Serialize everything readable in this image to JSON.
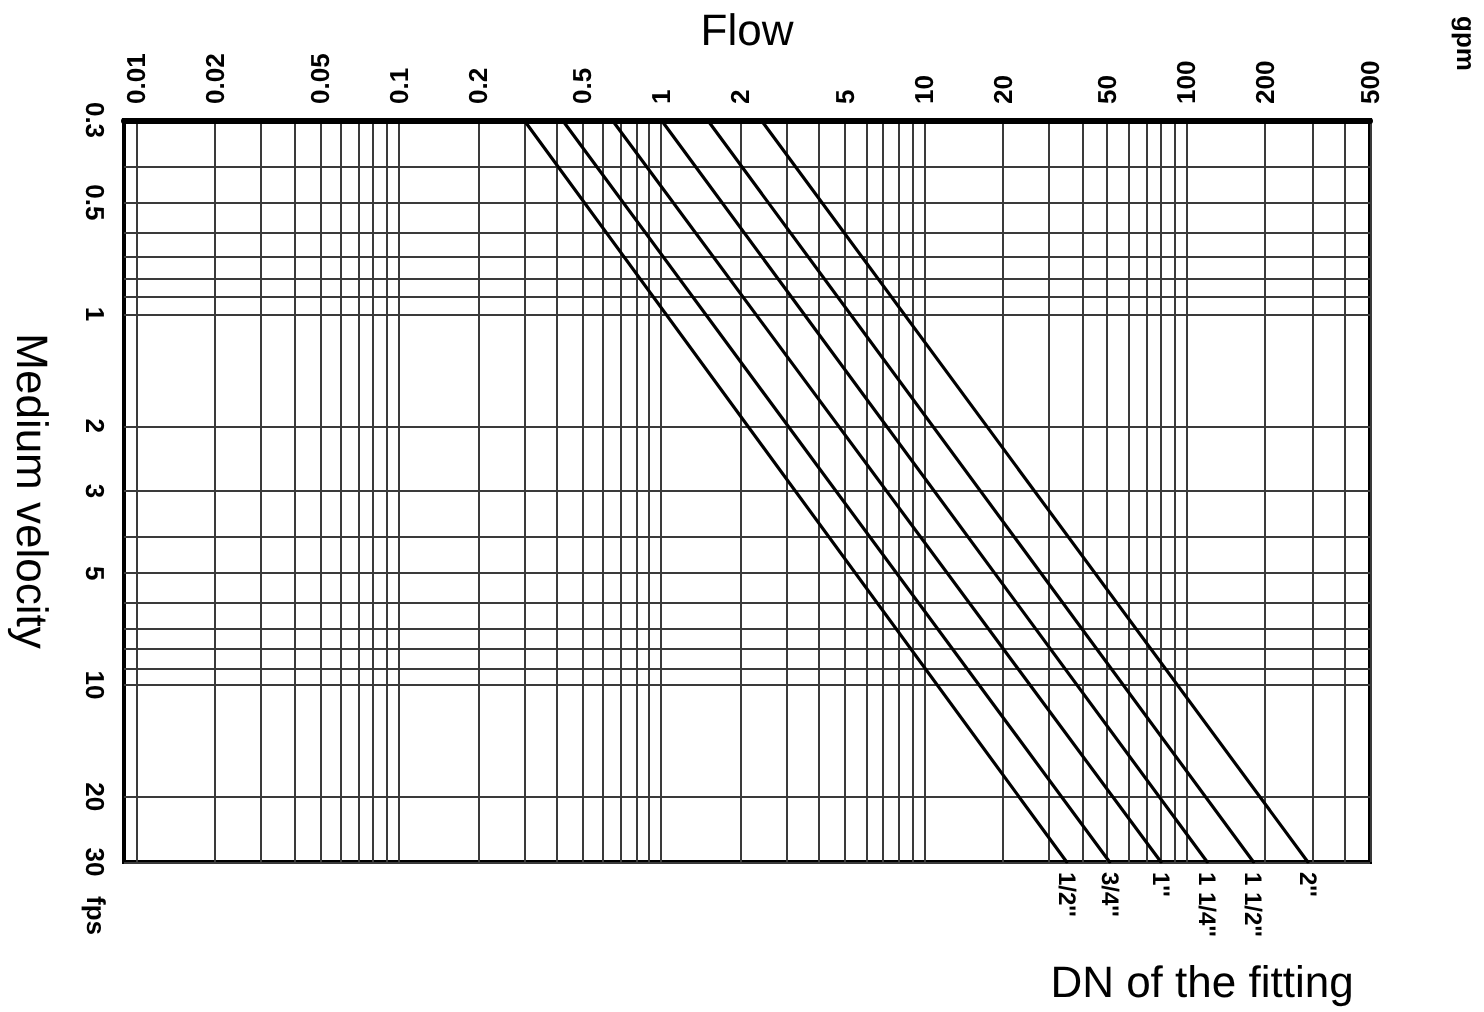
{
  "chart_data": {
    "type": "line",
    "xlabel": "Flow",
    "ylabel": "Medium velocity",
    "legend_title": "DN of the fitting",
    "annotations": [
      "gpm",
      "fps"
    ],
    "log": "xy",
    "grid": true,
    "xlim": [
      0.009,
      500
    ],
    "xticks": [
      0.01,
      0.02,
      {
        "value": 0.03,
        "label": null
      },
      {
        "value": 0.04,
        "label": null
      },
      0.05,
      {
        "value": 0.06,
        "label": null
      },
      {
        "value": 0.07,
        "label": null
      },
      {
        "value": 0.08,
        "label": null
      },
      {
        "value": 0.09,
        "label": null
      },
      0.1,
      0.2,
      {
        "value": 0.3,
        "label": null
      },
      {
        "value": 0.4,
        "label": null
      },
      0.5,
      {
        "value": 0.6,
        "label": null
      },
      {
        "value": 0.7,
        "label": null
      },
      {
        "value": 0.8,
        "label": null
      },
      {
        "value": 0.9,
        "label": null
      },
      1,
      2,
      {
        "value": 3,
        "label": null
      },
      {
        "value": 4,
        "label": null
      },
      5,
      {
        "value": 6,
        "label": null
      },
      {
        "value": 7,
        "label": null
      },
      {
        "value": 8,
        "label": null
      },
      {
        "value": 9,
        "label": null
      },
      10,
      20,
      {
        "value": 30,
        "label": null
      },
      {
        "value": 40,
        "label": null
      },
      50,
      {
        "value": 60,
        "label": null
      },
      {
        "value": 70,
        "label": null
      },
      {
        "value": 80,
        "label": null
      },
      {
        "value": 90,
        "label": null
      },
      100,
      200,
      {
        "value": 300,
        "label": null
      },
      {
        "value": 400,
        "label": null
      },
      500
    ],
    "ylim": [
      30,
      0.3
    ],
    "yticks": [
      0.3,
      {
        "value": 0.4,
        "label": null
      },
      0.5,
      {
        "value": 0.6,
        "label": null
      },
      {
        "value": 0.7,
        "label": null
      },
      {
        "value": 0.8,
        "label": null
      },
      {
        "value": 0.9,
        "label": null
      },
      1,
      2,
      3,
      {
        "value": 4,
        "label": null
      },
      5,
      {
        "value": 6,
        "label": null
      },
      {
        "value": 7,
        "label": null
      },
      {
        "value": 8,
        "label": null
      },
      {
        "value": 9,
        "label": null
      },
      10,
      20,
      30
    ],
    "series": [
      {
        "name": "1/2''",
        "color": "#000000",
        "x": [
          0.3,
          35
        ],
        "values": [
          0.3,
          30
        ]
      },
      {
        "name": "3/4''",
        "color": "#000000",
        "x": [
          0.42,
          51
        ],
        "values": [
          0.3,
          30
        ]
      },
      {
        "name": "1''",
        "color": "#000000",
        "x": [
          0.65,
          80
        ],
        "values": [
          0.3,
          30
        ]
      },
      {
        "name": "1 1/4''",
        "color": "#000000",
        "x": [
          1,
          120
        ],
        "values": [
          0.3,
          30
        ]
      },
      {
        "name": "1 1/2''",
        "color": "#000000",
        "x": [
          1.5,
          180
        ],
        "values": [
          0.3,
          30
        ]
      },
      {
        "name": "2''",
        "color": "#000000",
        "x": [
          2.4,
          290
        ],
        "values": [
          0.3,
          30
        ]
      }
    ]
  }
}
